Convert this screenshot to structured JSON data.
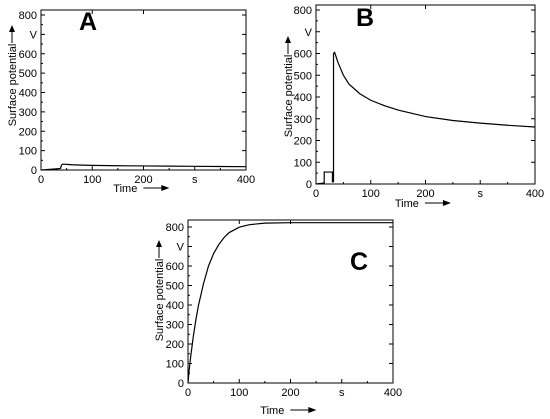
{
  "chart_data": [
    {
      "type": "line",
      "panel": "A",
      "xlabel": "Time",
      "ylabel": "Surface potential",
      "x_unit": "s",
      "y_unit": "V",
      "xlim": [
        0,
        400
      ],
      "ylim": [
        0,
        850
      ],
      "xticks": [
        "0",
        "100",
        "200",
        "400"
      ],
      "yticks": [
        "0",
        "100",
        "200",
        "300",
        "400",
        "500",
        "600",
        "700",
        "800"
      ],
      "series": [
        {
          "x": [
            0,
            10,
            20,
            30,
            38,
            40,
            42,
            45,
            50,
            60,
            80,
            100,
            150,
            200,
            250,
            300,
            350,
            400
          ],
          "y": [
            0,
            2,
            4,
            6,
            8,
            25,
            30,
            30,
            29,
            27,
            25,
            24,
            22,
            21,
            20,
            19,
            18,
            17
          ]
        }
      ]
    },
    {
      "type": "line",
      "panel": "B",
      "xlabel": "Time",
      "ylabel": "Surface potential",
      "x_unit": "s",
      "y_unit": "V",
      "xlim": [
        0,
        400
      ],
      "ylim": [
        0,
        800
      ],
      "xticks": [
        "0",
        "100",
        "200",
        "400"
      ],
      "yticks": [
        "0",
        "100",
        "200",
        "300",
        "400",
        "500",
        "600",
        "700",
        "800"
      ],
      "series": [
        {
          "x": [
            0,
            5,
            10,
            15,
            15,
            20,
            25,
            30,
            30,
            32,
            32,
            34,
            40,
            50,
            60,
            80,
            100,
            125,
            150,
            175,
            200,
            250,
            300,
            350,
            400
          ],
          "y": [
            0,
            2,
            3,
            5,
            55,
            55,
            55,
            55,
            10,
            10,
            600,
            605,
            560,
            500,
            460,
            415,
            385,
            360,
            340,
            325,
            310,
            292,
            280,
            270,
            262
          ]
        }
      ]
    },
    {
      "type": "line",
      "panel": "C",
      "xlabel": "Time",
      "ylabel": "Surface potential",
      "x_unit": "s",
      "y_unit": "V",
      "xlim": [
        0,
        400
      ],
      "ylim": [
        0,
        850
      ],
      "xticks": [
        "0",
        "100",
        "200",
        "400"
      ],
      "yticks": [
        "0",
        "100",
        "200",
        "300",
        "400",
        "500",
        "600",
        "700",
        "800"
      ],
      "series": [
        {
          "x": [
            0,
            2,
            5,
            10,
            15,
            20,
            30,
            40,
            50,
            60,
            70,
            80,
            100,
            120,
            150,
            200,
            250,
            300,
            350,
            400
          ],
          "y": [
            0,
            60,
            130,
            232,
            318,
            393,
            507,
            600,
            664,
            710,
            745,
            771,
            799,
            812,
            820,
            822,
            822,
            822,
            822,
            822
          ]
        }
      ]
    }
  ]
}
